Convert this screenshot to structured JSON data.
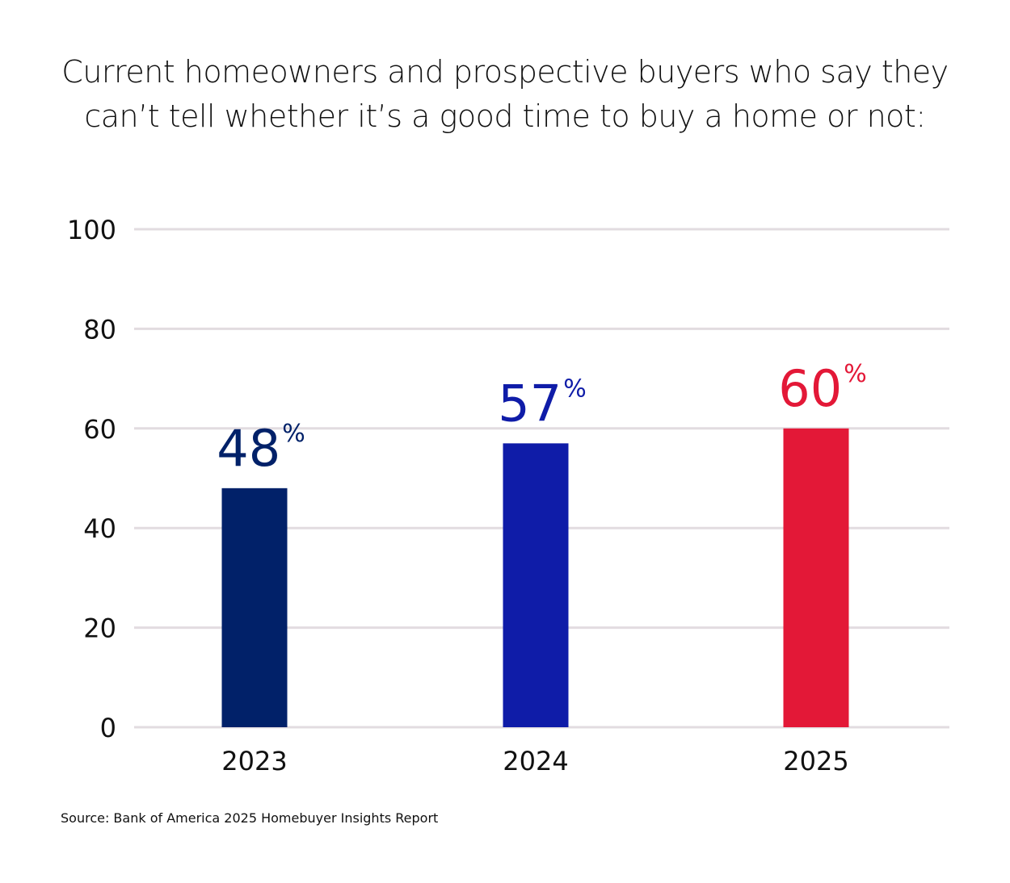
{
  "chart_data": {
    "type": "bar",
    "title_lines": [
      "Current homeowners and prospective buyers who say they",
      "can’t tell whether it’s a good time to buy a home or not:"
    ],
    "categories": [
      "2023",
      "2024",
      "2025"
    ],
    "values": [
      48,
      57,
      60
    ],
    "value_labels": [
      {
        "number": "48",
        "unit": "%"
      },
      {
        "number": "57",
        "unit": "%"
      },
      {
        "number": "60",
        "unit": "%"
      }
    ],
    "bar_colors": [
      "#012169",
      "#0f1ca8",
      "#e31837"
    ],
    "label_colors": [
      "#012169",
      "#0f1ca8",
      "#e31837"
    ],
    "ylim": [
      0,
      100
    ],
    "yticks": [
      0,
      20,
      40,
      60,
      80,
      100
    ],
    "grid": true,
    "grid_color": "#e2dce0",
    "xlabel": "",
    "ylabel": "",
    "source": "Source: Bank of America 2025 Homebuyer Insights Report"
  }
}
